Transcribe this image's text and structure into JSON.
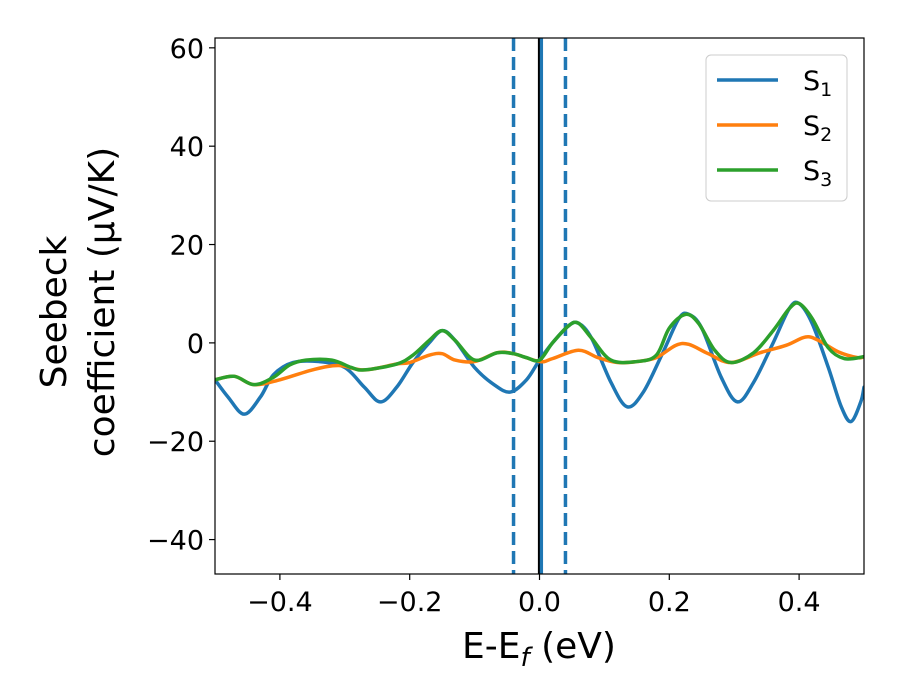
{
  "chart_data": {
    "type": "line",
    "title": "",
    "xlabel": "E-E",
    "xlabel_sub": "f",
    "xlabel_unit": " (eV)",
    "ylabel_line1": "Seebeck",
    "ylabel_line2": "coefficient  (μV/K)",
    "xlim": [
      -0.5,
      0.5
    ],
    "ylim": [
      -47,
      62
    ],
    "xticks": [
      -0.4,
      -0.2,
      0.0,
      0.2,
      0.4
    ],
    "xtick_labels": [
      "−0.4",
      "−0.2",
      "0.0",
      "0.2",
      "0.4"
    ],
    "yticks": [
      -40,
      -20,
      0,
      20,
      40,
      60
    ],
    "ytick_labels": [
      "−40",
      "−20",
      "0",
      "20",
      "40",
      "60"
    ],
    "grid": false,
    "legend_position": "top-right",
    "vlines": [
      {
        "x": -0.04,
        "style": "dashed",
        "color": "#1f77b4"
      },
      {
        "x": 0.04,
        "style": "dashed",
        "color": "#1f77b4"
      },
      {
        "x": 0.0,
        "style": "solid",
        "color": "#000000"
      },
      {
        "x": 0.003,
        "style": "solid",
        "color": "#1f77b4"
      }
    ],
    "series": [
      {
        "name": "S",
        "name_sub": "1",
        "color": "#1f77b4",
        "points": [
          [
            -0.5,
            -7.5
          ],
          [
            -0.48,
            -11
          ],
          [
            -0.455,
            -14.5
          ],
          [
            -0.43,
            -11
          ],
          [
            -0.41,
            -6.5
          ],
          [
            -0.38,
            -4
          ],
          [
            -0.34,
            -3.8
          ],
          [
            -0.3,
            -5
          ],
          [
            -0.27,
            -9
          ],
          [
            -0.245,
            -12
          ],
          [
            -0.22,
            -9
          ],
          [
            -0.195,
            -4
          ],
          [
            -0.17,
            0
          ],
          [
            -0.15,
            2.5
          ],
          [
            -0.13,
            0.5
          ],
          [
            -0.1,
            -5
          ],
          [
            -0.07,
            -8.5
          ],
          [
            -0.045,
            -10
          ],
          [
            -0.02,
            -7.5
          ],
          [
            0.0,
            -3.5
          ],
          [
            0.02,
            0
          ],
          [
            0.045,
            3.5
          ],
          [
            0.06,
            4
          ],
          [
            0.08,
            1
          ],
          [
            0.11,
            -8
          ],
          [
            0.135,
            -13
          ],
          [
            0.16,
            -10
          ],
          [
            0.19,
            -2
          ],
          [
            0.215,
            5
          ],
          [
            0.23,
            5.8
          ],
          [
            0.25,
            3
          ],
          [
            0.28,
            -7
          ],
          [
            0.305,
            -12
          ],
          [
            0.33,
            -8
          ],
          [
            0.36,
            0
          ],
          [
            0.385,
            7
          ],
          [
            0.4,
            8
          ],
          [
            0.42,
            4
          ],
          [
            0.445,
            -5
          ],
          [
            0.465,
            -13
          ],
          [
            0.48,
            -16
          ],
          [
            0.495,
            -12
          ],
          [
            0.5,
            -9
          ]
        ]
      },
      {
        "name": "S",
        "name_sub": "2",
        "color": "#ff7f0e",
        "points": [
          [
            -0.5,
            -7.5
          ],
          [
            -0.47,
            -6.8
          ],
          [
            -0.44,
            -8.5
          ],
          [
            -0.4,
            -7.5
          ],
          [
            -0.35,
            -5.5
          ],
          [
            -0.31,
            -4.6
          ],
          [
            -0.27,
            -5.5
          ],
          [
            -0.22,
            -4.3
          ],
          [
            -0.2,
            -4
          ],
          [
            -0.17,
            -2.5
          ],
          [
            -0.15,
            -2.2
          ],
          [
            -0.13,
            -3.5
          ],
          [
            -0.1,
            -3.8
          ],
          [
            -0.065,
            -2
          ],
          [
            -0.04,
            -2.2
          ],
          [
            0.0,
            -3.8
          ],
          [
            0.02,
            -3.2
          ],
          [
            0.06,
            -1.5
          ],
          [
            0.09,
            -3
          ],
          [
            0.12,
            -4
          ],
          [
            0.15,
            -3.8
          ],
          [
            0.18,
            -3
          ],
          [
            0.21,
            -0.5
          ],
          [
            0.23,
            -0.3
          ],
          [
            0.26,
            -2.2
          ],
          [
            0.295,
            -4
          ],
          [
            0.34,
            -2
          ],
          [
            0.38,
            -0.5
          ],
          [
            0.41,
            1.2
          ],
          [
            0.43,
            0.5
          ],
          [
            0.46,
            -1.8
          ],
          [
            0.49,
            -3
          ],
          [
            0.5,
            -2.8
          ]
        ]
      },
      {
        "name": "S",
        "name_sub": "3",
        "color": "#2ca02c",
        "points": [
          [
            -0.5,
            -7.5
          ],
          [
            -0.47,
            -6.8
          ],
          [
            -0.44,
            -8.5
          ],
          [
            -0.41,
            -7
          ],
          [
            -0.385,
            -4.5
          ],
          [
            -0.36,
            -3.5
          ],
          [
            -0.32,
            -3.5
          ],
          [
            -0.29,
            -5
          ],
          [
            -0.27,
            -5.5
          ],
          [
            -0.22,
            -4.3
          ],
          [
            -0.195,
            -2.5
          ],
          [
            -0.17,
            0.5
          ],
          [
            -0.15,
            2.5
          ],
          [
            -0.13,
            0.5
          ],
          [
            -0.1,
            -3.5
          ],
          [
            -0.065,
            -2
          ],
          [
            -0.04,
            -2.2
          ],
          [
            -0.02,
            -3
          ],
          [
            0.0,
            -3.5
          ],
          [
            0.02,
            0
          ],
          [
            0.045,
            3.5
          ],
          [
            0.06,
            4
          ],
          [
            0.08,
            1
          ],
          [
            0.11,
            -3.5
          ],
          [
            0.15,
            -3.8
          ],
          [
            0.18,
            -2.5
          ],
          [
            0.2,
            3
          ],
          [
            0.225,
            5.8
          ],
          [
            0.245,
            4
          ],
          [
            0.27,
            -1.5
          ],
          [
            0.295,
            -4
          ],
          [
            0.33,
            -2
          ],
          [
            0.36,
            2.5
          ],
          [
            0.385,
            7
          ],
          [
            0.4,
            8
          ],
          [
            0.42,
            5
          ],
          [
            0.445,
            -1
          ],
          [
            0.47,
            -3.2
          ],
          [
            0.5,
            -2.8
          ]
        ]
      }
    ]
  }
}
